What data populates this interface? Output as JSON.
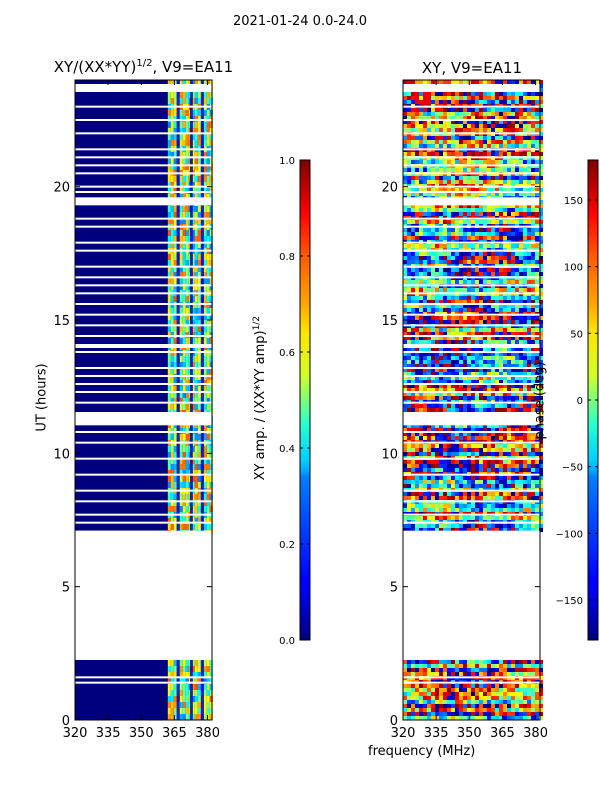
{
  "figure": {
    "suptitle": "2021-01-24 0.0-24.0",
    "xlabel": "frequency (MHz)"
  },
  "chart_data": [
    {
      "type": "heatmap",
      "title_text": "XY/(XX*YY)",
      "title_exp": "1/2",
      "title_suffix": ", V9=EA11",
      "ylabel": "UT (hours)",
      "xlim": [
        320,
        382
      ],
      "ylim": [
        0,
        24
      ],
      "xticks": [
        "320",
        "335",
        "350",
        "365",
        "380"
      ],
      "xtick_values": [
        320,
        335,
        350,
        365,
        380
      ],
      "yticks": [
        "0",
        "5",
        "10",
        "15",
        "20"
      ],
      "ytick_values": [
        0,
        5,
        10,
        15,
        20
      ],
      "data_time_ranges_hours": [
        [
          0,
          2.25
        ],
        [
          7.1,
          24
        ]
      ],
      "colorbar": {
        "label_text": "XY amp. / (XX*YY amp)",
        "label_exp": "1/2",
        "colormap": "jet",
        "range": [
          0.0,
          1.0
        ],
        "ticks": [
          "0.0",
          "0.2",
          "0.4",
          "0.6",
          "0.8",
          "1.0"
        ],
        "tick_values": [
          0.0,
          0.2,
          0.4,
          0.6,
          0.8,
          1.0
        ]
      }
    },
    {
      "type": "heatmap",
      "title_text": "XY, V9=EA11",
      "xlim": [
        320,
        382
      ],
      "ylim": [
        0,
        24
      ],
      "xticks": [
        "320",
        "335",
        "350",
        "365",
        "380"
      ],
      "xtick_values": [
        320,
        335,
        350,
        365,
        380
      ],
      "yticks": [
        "0",
        "5",
        "10",
        "15",
        "20"
      ],
      "ytick_values": [
        0,
        5,
        10,
        15,
        20
      ],
      "data_time_ranges_hours": [
        [
          0,
          2.25
        ],
        [
          7.1,
          24
        ]
      ],
      "colorbar": {
        "label_text": "phase (deg)",
        "colormap": "jet",
        "range": [
          -180,
          180
        ],
        "ticks": [
          "−150",
          "−100",
          "−50",
          "0",
          "50",
          "100",
          "150"
        ],
        "tick_values": [
          -150,
          -100,
          -50,
          0,
          50,
          100,
          150
        ]
      }
    }
  ]
}
